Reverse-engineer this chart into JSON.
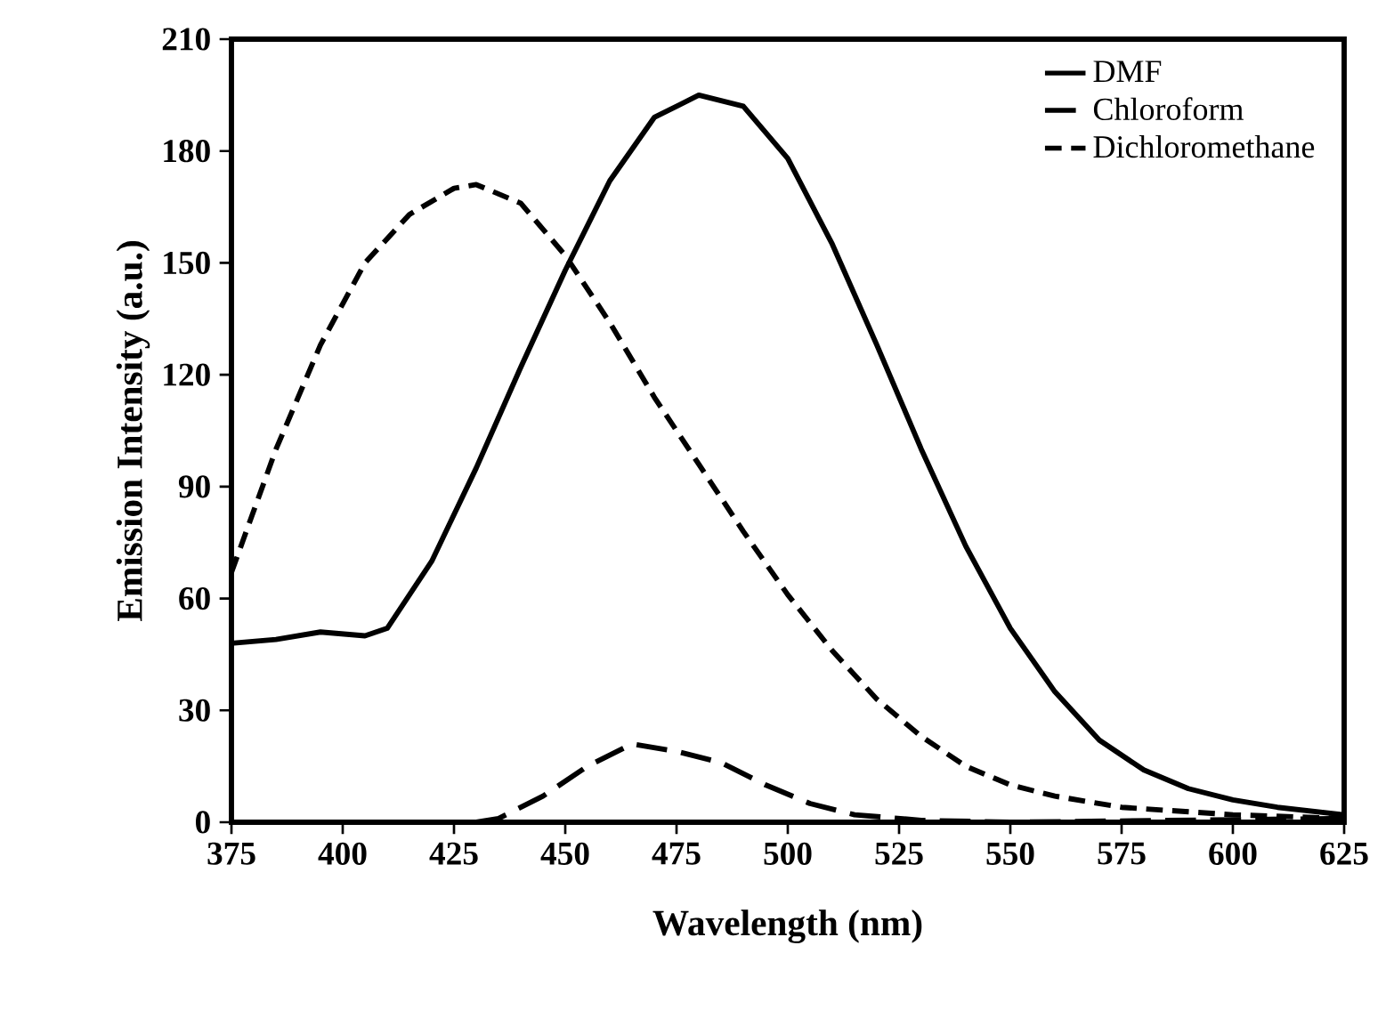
{
  "chart_data": {
    "type": "line",
    "xlabel": "Wavelength (nm)",
    "ylabel": "Emission Intensity (a.u.)",
    "xlim": [
      375,
      625
    ],
    "xticks": [
      375,
      400,
      425,
      450,
      475,
      500,
      525,
      550,
      575,
      600,
      625
    ],
    "ylim": [
      0,
      210
    ],
    "yticks": [
      0,
      30,
      60,
      90,
      120,
      150,
      180,
      210
    ],
    "legend": "top right",
    "grid": false,
    "series": [
      {
        "name": "DMF",
        "color": "#000000",
        "line_style": "solid",
        "x": [
          375,
          385,
          395,
          405,
          410,
          420,
          430,
          440,
          450,
          460,
          470,
          480,
          490,
          500,
          510,
          520,
          530,
          540,
          550,
          560,
          570,
          580,
          590,
          600,
          610,
          625
        ],
        "values": [
          48,
          49,
          51,
          50,
          52,
          70,
          95,
          122,
          148,
          172,
          189,
          195,
          192,
          178,
          155,
          128,
          100,
          74,
          52,
          35,
          22,
          14,
          9,
          6,
          4,
          2
        ]
      },
      {
        "name": "Chloroform",
        "color": "#000000",
        "line_style": "dashed",
        "x": [
          430,
          435,
          445,
          455,
          465,
          475,
          485,
          495,
          505,
          515,
          530,
          550,
          625
        ],
        "values": [
          0,
          1,
          7,
          15,
          21,
          19,
          16,
          10,
          5,
          2,
          0.5,
          0,
          1
        ]
      },
      {
        "name": "Dichloromethane",
        "color": "#000000",
        "line_style": "dashed",
        "x": [
          375,
          385,
          395,
          405,
          415,
          425,
          430,
          440,
          450,
          460,
          470,
          480,
          490,
          500,
          510,
          520,
          530,
          540,
          550,
          560,
          575,
          600,
          625
        ],
        "values": [
          67,
          100,
          128,
          150,
          163,
          170,
          171,
          166,
          152,
          134,
          114,
          96,
          78,
          61,
          46,
          33,
          23,
          15,
          10,
          7,
          4,
          2,
          1
        ]
      }
    ]
  }
}
